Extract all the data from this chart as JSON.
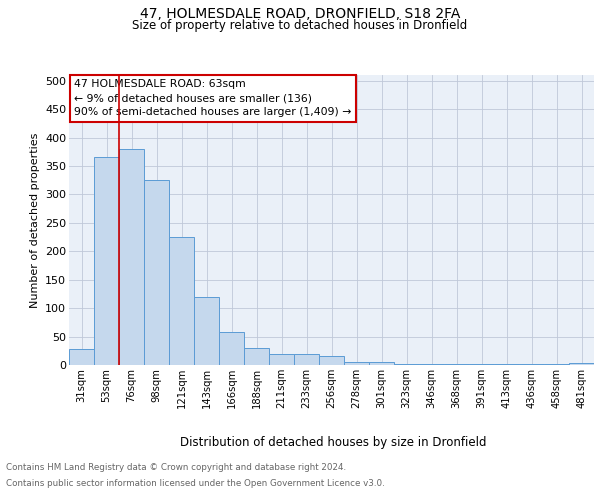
{
  "title": "47, HOLMESDALE ROAD, DRONFIELD, S18 2FA",
  "subtitle": "Size of property relative to detached houses in Dronfield",
  "xlabel": "Distribution of detached houses by size in Dronfield",
  "ylabel": "Number of detached properties",
  "categories": [
    "31sqm",
    "53sqm",
    "76sqm",
    "98sqm",
    "121sqm",
    "143sqm",
    "166sqm",
    "188sqm",
    "211sqm",
    "233sqm",
    "256sqm",
    "278sqm",
    "301sqm",
    "323sqm",
    "346sqm",
    "368sqm",
    "391sqm",
    "413sqm",
    "436sqm",
    "458sqm",
    "481sqm"
  ],
  "values": [
    28,
    365,
    380,
    325,
    225,
    120,
    58,
    30,
    20,
    20,
    15,
    6,
    5,
    1,
    1,
    1,
    1,
    1,
    1,
    1,
    3
  ],
  "bar_color": "#c5d8ed",
  "bar_edge_color": "#5b9bd5",
  "grid_color": "#c0c8d8",
  "background_color": "#eaf0f8",
  "annotation_box_color": "#ffffff",
  "annotation_border_color": "#cc0000",
  "vline_color": "#cc0000",
  "vline_x": 1.5,
  "annotation_title": "47 HOLMESDALE ROAD: 63sqm",
  "annotation_line1": "← 9% of detached houses are smaller (136)",
  "annotation_line2": "90% of semi-detached houses are larger (1,409) →",
  "footer_line1": "Contains HM Land Registry data © Crown copyright and database right 2024.",
  "footer_line2": "Contains public sector information licensed under the Open Government Licence v3.0.",
  "ylim": [
    0,
    510
  ],
  "yticks": [
    0,
    50,
    100,
    150,
    200,
    250,
    300,
    350,
    400,
    450,
    500
  ]
}
